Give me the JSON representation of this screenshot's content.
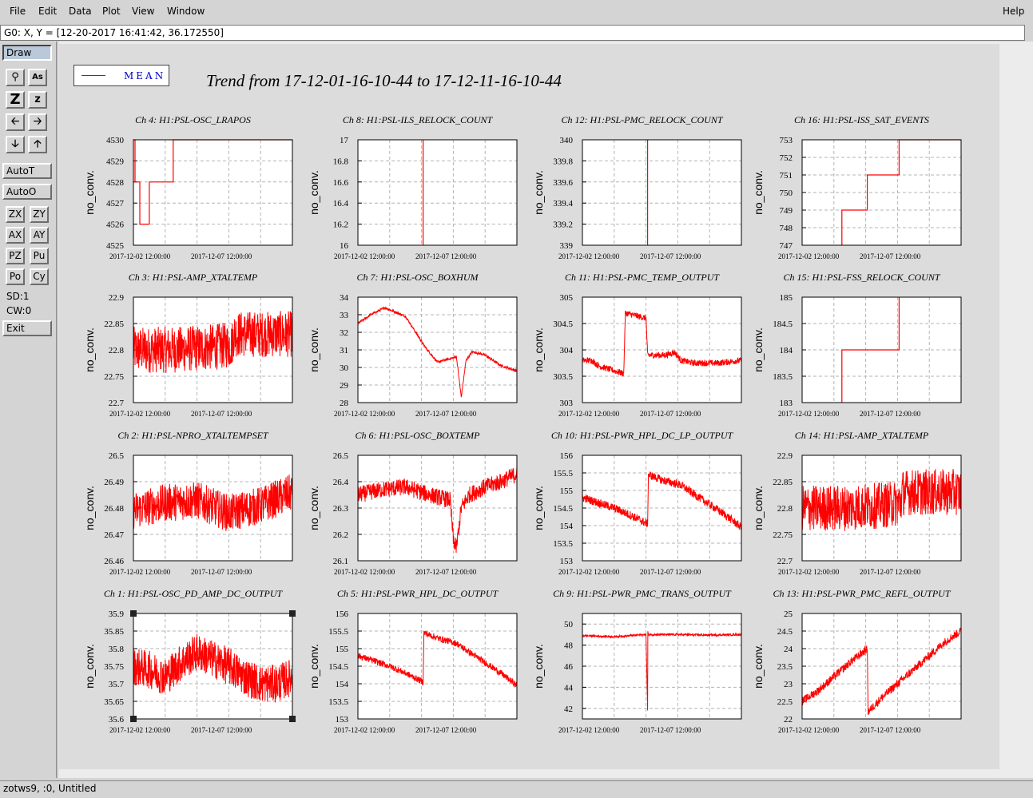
{
  "menu": {
    "file": "File",
    "edit": "Edit",
    "data": "Data",
    "plot": "Plot",
    "view": "View",
    "window": "Window",
    "help": "Help"
  },
  "coord_readout": "G0: X, Y = [12-20-2017 16:41:42, 36.172550]",
  "tools": {
    "draw": "Draw",
    "autot": "AutoT",
    "autoo": "AutoO",
    "zx": "ZX",
    "zy": "ZY",
    "ax": "AX",
    "ay": "AY",
    "pz": "PZ",
    "pu": "Pu",
    "po": "Po",
    "cy": "Cy",
    "sd": "SD:1",
    "cw": "CW:0",
    "exit": "Exit",
    "icon_z_big": "Z",
    "icon_z_small": "z",
    "icon_text": "As"
  },
  "legend": {
    "label": "MEAN",
    "color": "#e00000"
  },
  "title": "Trend from 17-12-01-16-10-44 to 17-12-11-16-10-44",
  "status": "zotws9, :0, Untitled",
  "colors": {
    "trace": "#ff0000",
    "grid": "#b4b4b4"
  },
  "chart_data": [
    {
      "type": "line",
      "title": "Ch 4: H1:PSL-OSC_LRAPOS",
      "ylabel": "no_conv.",
      "ylim": [
        4525,
        4530
      ],
      "yticks": [
        "4530",
        "4529",
        "4528",
        "4527",
        "4526",
        "4525"
      ],
      "xticks": [
        "2017-12-02 12:00:00",
        "2017-12-07 12:00:00"
      ],
      "x": [
        0,
        0.01,
        0.01,
        0.04,
        0.04,
        0.1,
        0.1,
        0.25,
        0.25,
        0.41,
        0.41,
        1.0
      ],
      "y": [
        4530,
        4530,
        4528,
        4528,
        4526,
        4526,
        4528,
        4528,
        4530,
        4530,
        4530,
        4530
      ]
    },
    {
      "type": "line",
      "title": "Ch 8: H1:PSL-ILS_RELOCK_COUNT",
      "ylabel": "no_conv.",
      "ylim": [
        16,
        17
      ],
      "yticks": [
        "17",
        "16.8",
        "16.6",
        "16.4",
        "16.2",
        "16"
      ],
      "xticks": [
        "2017-12-02 12:00:00",
        "2017-12-07 12:00:00"
      ],
      "x": [
        0.41,
        0.41
      ],
      "y": [
        16,
        17
      ]
    },
    {
      "type": "line",
      "title": "Ch 12: H1:PSL-PMC_RELOCK_COUNT",
      "ylabel": "no_conv.",
      "ylim": [
        339,
        340
      ],
      "yticks": [
        "340",
        "339.8",
        "339.6",
        "339.4",
        "339.2",
        "339"
      ],
      "xticks": [
        "2017-12-02 12:00:00",
        "2017-12-07 12:00:00"
      ],
      "x": [
        0.41,
        0.41
      ],
      "y": [
        339,
        340
      ]
    },
    {
      "type": "line",
      "title": "Ch 16: H1:PSL-ISS_SAT_EVENTS",
      "ylabel": "no_conv.",
      "ylim": [
        747,
        753
      ],
      "yticks": [
        "753",
        "752",
        "751",
        "750",
        "749",
        "748",
        "747"
      ],
      "xticks": [
        "2017-12-02 12:00:00",
        "2017-12-07 12:00:00"
      ],
      "x": [
        0.25,
        0.25,
        0.41,
        0.41,
        0.61,
        0.61,
        1.0
      ],
      "y": [
        747,
        749,
        749,
        751,
        751,
        753,
        753
      ]
    },
    {
      "type": "line",
      "title": "Ch 3: H1:PSL-AMP_XTALTEMP",
      "ylabel": "no_conv.",
      "ylim": [
        22.7,
        22.9
      ],
      "yticks": [
        "22.9",
        "22.85",
        "22.8",
        "22.75",
        "22.7"
      ],
      "xticks": [
        "2017-12-02 12:00:00",
        "2017-12-07 12:00:00"
      ],
      "x": [
        0,
        0.25,
        0.5,
        0.62,
        0.63,
        0.8,
        1.0
      ],
      "y": [
        22.8,
        22.8,
        22.805,
        22.81,
        22.83,
        22.83,
        22.83
      ]
    },
    {
      "type": "line",
      "title": "Ch 7: H1:PSL-OSC_BOXHUM",
      "ylabel": "no_conv.",
      "ylim": [
        28,
        34
      ],
      "yticks": [
        "34",
        "33",
        "32",
        "31",
        "30",
        "29",
        "28"
      ],
      "xticks": [
        "2017-12-02 12:00:00",
        "2017-12-07 12:00:00"
      ],
      "x": [
        0,
        0.08,
        0.17,
        0.3,
        0.42,
        0.5,
        0.58,
        0.62,
        0.65,
        0.68,
        0.72,
        0.8,
        0.9,
        1.0
      ],
      "y": [
        32.5,
        33.0,
        33.4,
        32.9,
        31.2,
        30.3,
        30.5,
        30.6,
        28.3,
        30.4,
        30.9,
        30.7,
        30.1,
        29.8
      ]
    },
    {
      "type": "line",
      "title": "Ch 11: H1:PSL-PMC_TEMP_OUTPUT",
      "ylabel": "no_conv.",
      "ylim": [
        303,
        305
      ],
      "yticks": [
        "305",
        "304.5",
        "304",
        "303.5",
        "303"
      ],
      "xticks": [
        "2017-12-02 12:00:00",
        "2017-12-07 12:00:00"
      ],
      "x": [
        0,
        0.06,
        0.1,
        0.15,
        0.26,
        0.27,
        0.4,
        0.41,
        0.52,
        0.58,
        0.62,
        0.7,
        0.85,
        1.0
      ],
      "y": [
        303.8,
        303.8,
        303.7,
        303.65,
        303.55,
        304.7,
        304.6,
        303.9,
        303.9,
        303.95,
        303.8,
        303.75,
        303.75,
        303.8
      ]
    },
    {
      "type": "line",
      "title": "Ch 15: H1:PSL-FSS_RELOCK_COUNT",
      "ylabel": "no_conv.",
      "ylim": [
        183,
        185
      ],
      "yticks": [
        "185",
        "184.5",
        "184",
        "183.5",
        "183"
      ],
      "xticks": [
        "2017-12-02 12:00:00",
        "2017-12-07 12:00:00"
      ],
      "x": [
        0.25,
        0.25,
        0.61,
        0.61
      ],
      "y": [
        183,
        184,
        184,
        185
      ]
    },
    {
      "type": "line",
      "title": "Ch 2: H1:PSL-NPRO_XTALTEMPSET",
      "ylabel": "no_conv.",
      "ylim": [
        26.46,
        26.5
      ],
      "yticks": [
        "26.5",
        "26.49",
        "26.48",
        "26.47",
        "26.46"
      ],
      "xticks": [
        "2017-12-02 12:00:00",
        "2017-12-07 12:00:00"
      ],
      "x": [
        0,
        0.2,
        0.4,
        0.6,
        0.8,
        1.0
      ],
      "y": [
        26.479,
        26.482,
        26.483,
        26.478,
        26.481,
        26.486
      ]
    },
    {
      "type": "line",
      "title": "Ch 6: H1:PSL-OSC_BOXTEMP",
      "ylabel": "no_conv.",
      "ylim": [
        26.1,
        26.5
      ],
      "yticks": [
        "26.5",
        "26.4",
        "26.3",
        "26.2",
        "26.1"
      ],
      "xticks": [
        "2017-12-02 12:00:00",
        "2017-12-07 12:00:00"
      ],
      "x": [
        0,
        0.15,
        0.3,
        0.45,
        0.58,
        0.6,
        0.62,
        0.65,
        0.7,
        0.8,
        0.9,
        1.0
      ],
      "y": [
        26.35,
        26.37,
        26.38,
        26.35,
        26.33,
        26.18,
        26.15,
        26.3,
        26.35,
        26.38,
        26.4,
        26.43
      ]
    },
    {
      "type": "line",
      "title": "Ch 10: H1:PSL-PWR_HPL_DC_LP_OUTPUT",
      "ylabel": "no_conv.",
      "ylim": [
        153,
        156
      ],
      "yticks": [
        "156",
        "155.5",
        "155",
        "154.5",
        "154",
        "153.5",
        "153"
      ],
      "xticks": [
        "2017-12-02 12:00:00",
        "2017-12-07 12:00:00"
      ],
      "x": [
        0,
        0.1,
        0.2,
        0.3,
        0.41,
        0.415,
        0.5,
        0.62,
        0.7,
        0.8,
        0.9,
        1.0
      ],
      "y": [
        154.8,
        154.65,
        154.5,
        154.3,
        154.05,
        155.45,
        155.3,
        155.15,
        154.9,
        154.6,
        154.3,
        153.95
      ]
    },
    {
      "type": "line",
      "title": "Ch 14: H1:PSL-AMP_XTALTEMP",
      "ylabel": "no_conv.",
      "ylim": [
        22.7,
        22.9
      ],
      "yticks": [
        "22.9",
        "22.85",
        "22.8",
        "22.75",
        "22.7"
      ],
      "xticks": [
        "2017-12-02 12:00:00",
        "2017-12-07 12:00:00"
      ],
      "x": [
        0,
        0.25,
        0.5,
        0.62,
        0.63,
        0.8,
        1.0
      ],
      "y": [
        22.8,
        22.8,
        22.805,
        22.81,
        22.83,
        22.83,
        22.83
      ]
    },
    {
      "type": "line",
      "title": "Ch 1: H1:PSL-OSC_PD_AMP_DC_OUTPUT",
      "ylabel": "no_conv.",
      "ylim": [
        35.6,
        35.9
      ],
      "yticks": [
        "35.9",
        "35.85",
        "35.8",
        "35.75",
        "35.7",
        "35.65",
        "35.6"
      ],
      "xticks": [
        "2017-12-02 12:00:00",
        "2017-12-07 12:00:00"
      ],
      "x": [
        0,
        0.1,
        0.2,
        0.3,
        0.4,
        0.45,
        0.5,
        0.6,
        0.7,
        0.8,
        0.9,
        1.0
      ],
      "y": [
        35.75,
        35.74,
        35.72,
        35.76,
        35.79,
        35.78,
        35.77,
        35.75,
        35.72,
        35.7,
        35.7,
        35.72
      ]
    },
    {
      "type": "line",
      "title": "Ch 5: H1:PSL-PWR_HPL_DC_OUTPUT",
      "ylabel": "no_conv.",
      "ylim": [
        153,
        156
      ],
      "yticks": [
        "156",
        "155.5",
        "155",
        "154.5",
        "154",
        "153.5",
        "153"
      ],
      "xticks": [
        "2017-12-02 12:00:00",
        "2017-12-07 12:00:00"
      ],
      "x": [
        0,
        0.1,
        0.2,
        0.3,
        0.41,
        0.415,
        0.5,
        0.62,
        0.7,
        0.8,
        0.9,
        1.0
      ],
      "y": [
        154.8,
        154.65,
        154.5,
        154.3,
        154.05,
        155.45,
        155.3,
        155.15,
        154.9,
        154.6,
        154.3,
        153.95
      ]
    },
    {
      "type": "line",
      "title": "Ch 9: H1:PSL-PWR_PMC_TRANS_OUTPUT",
      "ylabel": "no_conv.",
      "ylim": [
        41,
        51
      ],
      "yticks": [
        "50",
        "48",
        "46",
        "44",
        "42"
      ],
      "xticks": [
        "2017-12-02 12:00:00",
        "2017-12-07 12:00:00"
      ],
      "x": [
        0,
        0.2,
        0.4,
        0.41,
        0.41,
        0.412,
        0.412,
        0.6,
        0.8,
        1.0
      ],
      "y": [
        48.9,
        48.8,
        49.0,
        41.8,
        50.8,
        49.0,
        49.0,
        49.0,
        48.95,
        49.0
      ]
    },
    {
      "type": "line",
      "title": "Ch 13: H1:PSL-PWR_PMC_REFL_OUTPUT",
      "ylabel": "no_conv.",
      "ylim": [
        22,
        25
      ],
      "yticks": [
        "25",
        "24.5",
        "24",
        "23.5",
        "23",
        "22.5",
        "22"
      ],
      "xticks": [
        "2017-12-02 12:00:00",
        "2017-12-07 12:00:00"
      ],
      "x": [
        0,
        0.1,
        0.2,
        0.3,
        0.41,
        0.415,
        0.5,
        0.6,
        0.7,
        0.8,
        0.9,
        1.0
      ],
      "y": [
        22.5,
        22.8,
        23.2,
        23.6,
        24.0,
        22.2,
        22.6,
        23.0,
        23.4,
        23.8,
        24.2,
        24.5
      ]
    }
  ]
}
